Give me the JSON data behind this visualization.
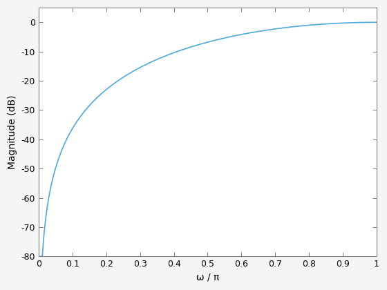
{
  "xlabel": "ω / π",
  "ylabel": "Magnitude (dB)",
  "xlim": [
    0,
    1
  ],
  "ylim": [
    -80,
    5
  ],
  "yticks": [
    0,
    -10,
    -20,
    -30,
    -40,
    -50,
    -60,
    -70,
    -80
  ],
  "xticks": [
    0,
    0.1,
    0.2,
    0.3,
    0.4,
    0.5,
    0.6,
    0.7,
    0.8,
    0.9,
    1.0
  ],
  "line_color": "#4DAADC",
  "line_width": 1.2,
  "background_color": "#ffffff",
  "figure_facecolor": "#f5f5f5",
  "n_exponent": 2.25,
  "clip_low": -80
}
